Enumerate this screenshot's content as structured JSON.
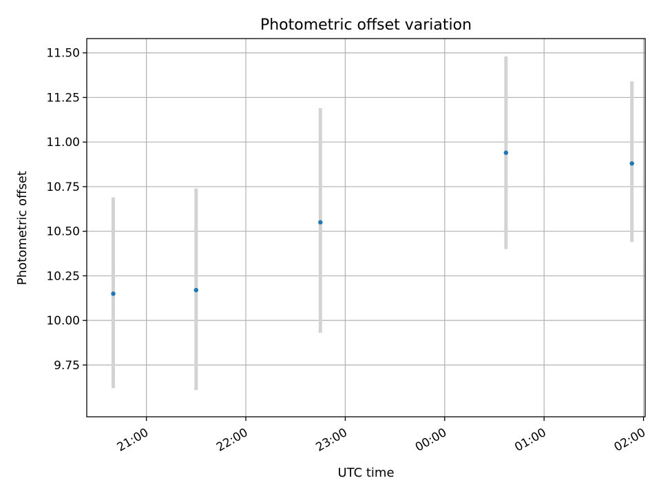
{
  "chart_data": {
    "type": "scatter",
    "title": "Photometric offset variation",
    "xlabel": "UTC time",
    "ylabel": "Photometric offset",
    "x_ticks": [
      {
        "t": "21:00",
        "label": "21:00"
      },
      {
        "t": "22:00",
        "label": "22:00"
      },
      {
        "t": "23:00",
        "label": "23:00"
      },
      {
        "t": "24:00",
        "label": "00:00"
      },
      {
        "t": "25:00",
        "label": "01:00"
      },
      {
        "t": "26:00",
        "label": "02:00"
      }
    ],
    "y_ticks": [
      9.75,
      10.0,
      10.25,
      10.5,
      10.75,
      11.0,
      11.25,
      11.5
    ],
    "xlim": [
      "20:24",
      "26:01"
    ],
    "ylim": [
      9.46,
      11.58
    ],
    "grid": true,
    "series": [
      {
        "color": "#1f77b4",
        "errorbar_color": "#d3d3d3",
        "points": [
          {
            "x": "20:40",
            "y": 10.15,
            "yerr_low": 9.62,
            "yerr_high": 10.69
          },
          {
            "x": "21:30",
            "y": 10.17,
            "yerr_low": 9.61,
            "yerr_high": 10.74
          },
          {
            "x": "22:45",
            "y": 10.55,
            "yerr_low": 9.93,
            "yerr_high": 11.19
          },
          {
            "x": "24:37",
            "y": 10.94,
            "yerr_low": 10.4,
            "yerr_high": 11.48
          },
          {
            "x": "25:53",
            "y": 10.88,
            "yerr_low": 10.44,
            "yerr_high": 11.34
          }
        ]
      }
    ]
  }
}
